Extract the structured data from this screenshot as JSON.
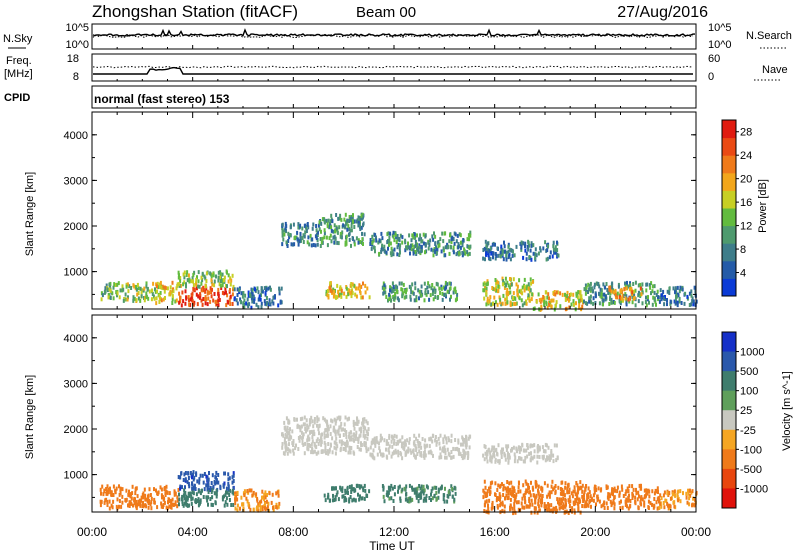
{
  "header": {
    "station": "Zhongshan Station (fitACF)",
    "beam": "Beam 00",
    "date": "27/Aug/2016"
  },
  "top_panels": {
    "nsky_label": "N.Sky",
    "nsky_ticks": [
      "10^5",
      "10^0"
    ],
    "nsearch_label": "N.Search",
    "nsearch_ticks": [
      "10^5",
      "10^0"
    ],
    "freq_label_1": "Freq.",
    "freq_label_2": "[MHz]",
    "freq_ticks": [
      "18",
      "8"
    ],
    "nave_label": "Nave",
    "nave_ticks": [
      "60",
      "0"
    ],
    "cpid_label": "CPID",
    "cpid_value": "normal (fast stereo) 153"
  },
  "colors": {
    "power": [
      "#0b3bd6",
      "#245ba8",
      "#3e7d8a",
      "#4e9a6e",
      "#62bb3f",
      "#c7cf24",
      "#f2a61b",
      "#ef7a1a",
      "#ea4a14",
      "#e01b10"
    ],
    "velocity": [
      "#1530c8",
      "#2a58ab",
      "#3f7d6d",
      "#5f9f5b",
      "#c8c8c0",
      "#f5a623",
      "#ef7a1a",
      "#e8460e",
      "#e0120b"
    ]
  },
  "chart_data": [
    {
      "type": "heatmap",
      "title": "",
      "xlabel": "Time UT",
      "ylabel": "Slant Range [km]",
      "x_ticks": [
        "00:00",
        "04:00",
        "08:00",
        "12:00",
        "16:00",
        "20:00",
        "00:00"
      ],
      "xlim": [
        0,
        24
      ],
      "y_ticks": [
        "1000",
        "2000",
        "3000",
        "4000"
      ],
      "ylim": [
        180,
        4500
      ],
      "colorbar_label": "Power [dB]",
      "colorbar_ticks": [
        "4",
        "8",
        "12",
        "16",
        "20",
        "24",
        "28"
      ],
      "clim": [
        0,
        30
      ],
      "scatter_regions": [
        {
          "t": [
            0.3,
            1.2
          ],
          "r": [
            400,
            800
          ],
          "v": 12
        },
        {
          "t": [
            1.2,
            2.5
          ],
          "r": [
            400,
            800
          ],
          "v": 14
        },
        {
          "t": [
            2.5,
            3.4
          ],
          "r": [
            350,
            800
          ],
          "v": 18
        },
        {
          "t": [
            3.4,
            5.6
          ],
          "r": [
            300,
            700
          ],
          "v": 26
        },
        {
          "t": [
            3.4,
            5.6
          ],
          "r": [
            700,
            1050
          ],
          "v": 14
        },
        {
          "t": [
            5.6,
            7.5
          ],
          "r": [
            250,
            700
          ],
          "v": 6
        },
        {
          "t": [
            7.5,
            9.0
          ],
          "r": [
            1600,
            2100
          ],
          "v": 8
        },
        {
          "t": [
            9.0,
            10.8
          ],
          "r": [
            1600,
            2300
          ],
          "v": 10
        },
        {
          "t": [
            9.2,
            11.0
          ],
          "r": [
            450,
            800
          ],
          "v": 18
        },
        {
          "t": [
            11.0,
            15.0
          ],
          "r": [
            1400,
            1900
          ],
          "v": 9
        },
        {
          "t": [
            11.5,
            14.5
          ],
          "r": [
            400,
            800
          ],
          "v": 10
        },
        {
          "t": [
            15.5,
            18.5
          ],
          "r": [
            1300,
            1700
          ],
          "v": 7
        },
        {
          "t": [
            15.5,
            17.5
          ],
          "r": [
            300,
            900
          ],
          "v": 16
        },
        {
          "t": [
            17.5,
            19.5
          ],
          "r": [
            200,
            600
          ],
          "v": 18
        },
        {
          "t": [
            19.5,
            22.5
          ],
          "r": [
            300,
            800
          ],
          "v": 10
        },
        {
          "t": [
            20.5,
            21.8
          ],
          "r": [
            400,
            700
          ],
          "v": 22
        },
        {
          "t": [
            22.5,
            24.0
          ],
          "r": [
            300,
            700
          ],
          "v": 6
        }
      ]
    },
    {
      "type": "heatmap",
      "title": "",
      "xlabel": "Time UT",
      "ylabel": "Slant Range [km]",
      "x_ticks": [
        "00:00",
        "04:00",
        "08:00",
        "12:00",
        "16:00",
        "20:00",
        "00:00"
      ],
      "xlim": [
        0,
        24
      ],
      "y_ticks": [
        "1000",
        "2000",
        "3000",
        "4000"
      ],
      "ylim": [
        180,
        4500
      ],
      "colorbar_label": "Velocity [m s^-1]",
      "colorbar_ticks": [
        "1000",
        "500",
        "100",
        "25",
        "-25",
        "-100",
        "-500",
        "-1000"
      ],
      "scatter_regions": [
        {
          "t": [
            0.3,
            2.5
          ],
          "r": [
            300,
            800
          ],
          "v": -200
        },
        {
          "t": [
            2.5,
            3.4
          ],
          "r": [
            300,
            800
          ],
          "v": -150
        },
        {
          "t": [
            3.4,
            5.6
          ],
          "r": [
            700,
            1100
          ],
          "v": 800
        },
        {
          "t": [
            3.4,
            5.6
          ],
          "r": [
            350,
            700
          ],
          "v": 200
        },
        {
          "t": [
            5.6,
            7.5
          ],
          "r": [
            250,
            700
          ],
          "v": -100
        },
        {
          "t": [
            7.5,
            11.0
          ],
          "r": [
            1500,
            2300
          ],
          "v": 0
        },
        {
          "t": [
            9.2,
            11.0
          ],
          "r": [
            450,
            800
          ],
          "v": 150
        },
        {
          "t": [
            11.0,
            15.0
          ],
          "r": [
            1400,
            1900
          ],
          "v": 0
        },
        {
          "t": [
            11.5,
            14.5
          ],
          "r": [
            450,
            800
          ],
          "v": 120
        },
        {
          "t": [
            15.5,
            18.5
          ],
          "r": [
            1300,
            1700
          ],
          "v": 0
        },
        {
          "t": [
            15.5,
            19.5
          ],
          "r": [
            200,
            900
          ],
          "v": -250
        },
        {
          "t": [
            19.5,
            22.5
          ],
          "r": [
            300,
            800
          ],
          "v": -300
        },
        {
          "t": [
            22.5,
            24.0
          ],
          "r": [
            300,
            700
          ],
          "v": -100
        }
      ]
    }
  ]
}
